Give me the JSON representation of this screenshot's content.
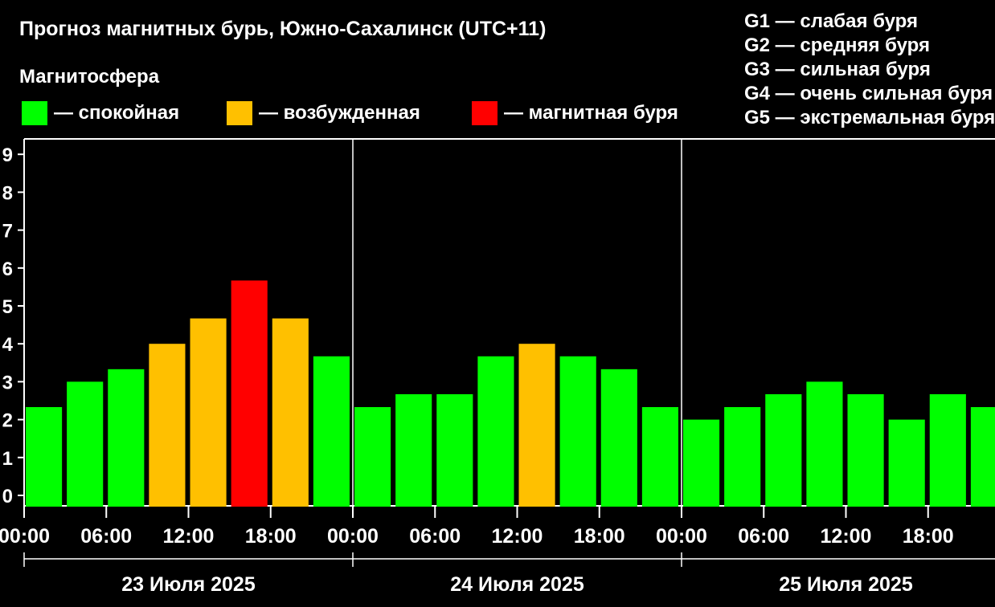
{
  "header": {
    "title": "Прогноз магнитных бурь, Южно-Сахалинск (UTC+11)",
    "subtitle": "Магнитосфера"
  },
  "legend": [
    {
      "label": "— спокойная",
      "color": "#00ff00"
    },
    {
      "label": "— возбужденная",
      "color": "#ffc000"
    },
    {
      "label": "— магнитная буря",
      "color": "#ff0000"
    }
  ],
  "g_legend": [
    "G1 — слабая буря",
    "G2 — средняя буря",
    "G3 — сильная буря",
    "G4 — очень сильная буря",
    "G5 — экстремальная буря"
  ],
  "chart_data": {
    "type": "bar",
    "title": "Прогноз магнитных бурь, Южно-Сахалинск (UTC+11)",
    "ylim": [
      0,
      9
    ],
    "yticks": [
      "0",
      "1",
      "2",
      "3",
      "4",
      "5",
      "6",
      "7",
      "8",
      "9"
    ],
    "grid": false,
    "days": [
      "23 Июля 2025",
      "24 Июля 2025",
      "25 Июля 2025"
    ],
    "time_labels": [
      "00:00",
      "06:00",
      "12:00",
      "18:00"
    ],
    "intervals_per_day": 8,
    "values": [
      2.33,
      3.0,
      3.33,
      4.0,
      4.67,
      5.67,
      4.67,
      3.67,
      2.33,
      2.67,
      2.67,
      3.67,
      4.0,
      3.67,
      3.33,
      2.33,
      2.0,
      2.33,
      2.67,
      3.0,
      2.67,
      2.0,
      2.67,
      2.33
    ],
    "status": [
      "calm",
      "calm",
      "calm",
      "excited",
      "excited",
      "storm",
      "excited",
      "calm",
      "calm",
      "calm",
      "calm",
      "calm",
      "excited",
      "calm",
      "calm",
      "calm",
      "calm",
      "calm",
      "calm",
      "calm",
      "calm",
      "calm",
      "calm",
      "calm"
    ],
    "colors": {
      "calm": "#00ff00",
      "excited": "#ffc000",
      "storm": "#ff0000"
    }
  }
}
